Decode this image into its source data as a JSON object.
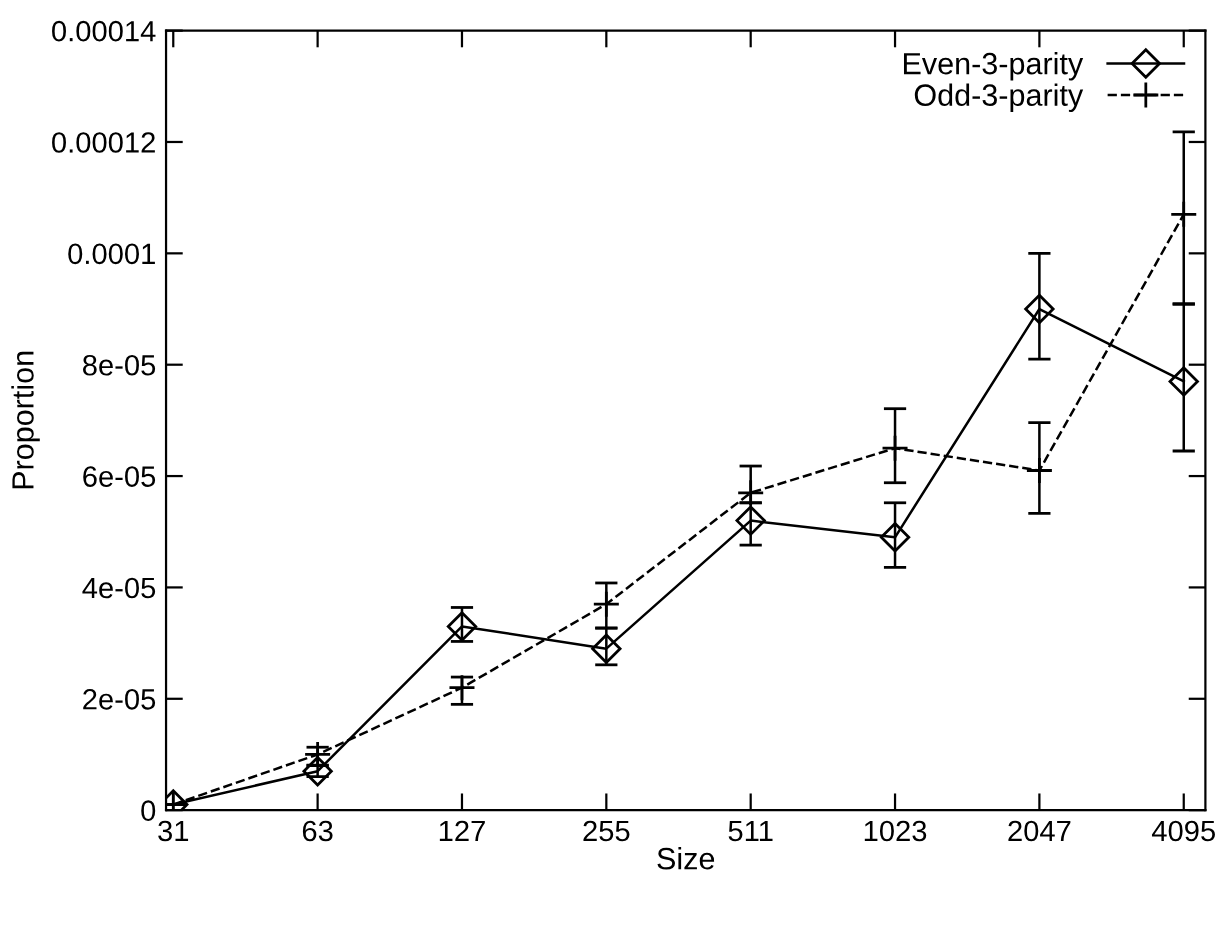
{
  "chart_data": {
    "type": "line",
    "xlabel": "Size",
    "ylabel": "Proportion",
    "categories": [
      "31",
      "63",
      "127",
      "255",
      "511",
      "1023",
      "2047",
      "4095"
    ],
    "ylim": [
      0,
      0.00014
    ],
    "yticks": [
      0,
      2e-05,
      4e-05,
      6e-05,
      8e-05,
      0.0001,
      0.00012,
      0.00014
    ],
    "legend": "top right",
    "grid": false,
    "series": [
      {
        "name": "Even-3-parity",
        "color": "#000000",
        "marker": "diamond",
        "line_style": "solid",
        "values": [
          1e-06,
          7e-06,
          3.3e-05,
          2.9e-05,
          5.2e-05,
          4.9e-05,
          9e-05,
          7.7e-05
        ],
        "errors": [
          null,
          [
            6e-06,
            8e-06
          ],
          [
            3.03e-05,
            3.64e-05
          ],
          [
            2.61e-05,
            3.27e-05
          ],
          [
            4.76e-05,
            5.52e-05
          ],
          [
            4.36e-05,
            5.52e-05
          ],
          [
            8.1e-05,
            0.0001
          ],
          [
            6.45e-05,
            9.09e-05
          ]
        ]
      },
      {
        "name": "Odd-3-parity",
        "color": "#000000",
        "marker": "cross",
        "line_style": "dashed",
        "values": [
          1e-06,
          1e-05,
          2.2e-05,
          3.7e-05,
          5.7e-05,
          6.5e-05,
          6.1e-05,
          0.000107
        ],
        "errors": [
          null,
          [
            8.1e-06,
            1.13e-05
          ],
          [
            1.9e-05,
            2.39e-05
          ],
          [
            3.27e-05,
            4.08e-05
          ],
          [
            5.52e-05,
            6.18e-05
          ],
          [
            5.88e-05,
            7.21e-05
          ],
          [
            5.33e-05,
            6.96e-05
          ],
          [
            9.09e-05,
            0.0001218
          ]
        ]
      }
    ]
  }
}
